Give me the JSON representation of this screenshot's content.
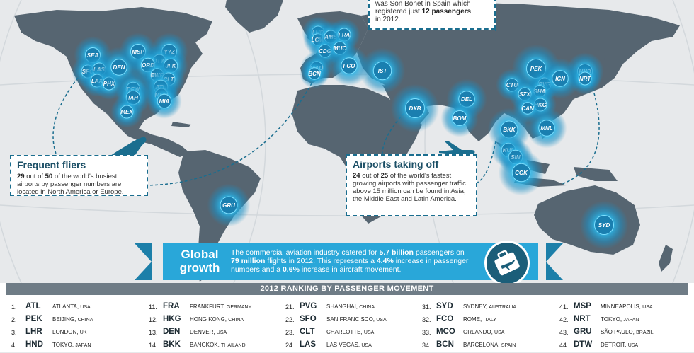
{
  "callouts": {
    "top": {
      "line1": "was Son Bonet in Spain which",
      "line2_pre": "registered just ",
      "line2_bold": "12 passengers",
      "line3": "in 2012."
    },
    "frequent_fliers": {
      "title": "Frequent fliers",
      "n1": "29",
      "t1": " out of ",
      "n2": "50",
      "t2": " of the world's busiest airports by passenger numbers are located in North America or Europe."
    },
    "taking_off": {
      "title": "Airports taking off",
      "n1": "24",
      "t1": " out of ",
      "n2": "25",
      "t2": " of the world's fastest growing airports with passenger traffic above 15 million can be found in Asia, the Middle East and Latin America."
    }
  },
  "banner": {
    "title_line1": "Global",
    "title_line2": "growth",
    "t1": "The commercial aviation industry catered for ",
    "b1": "5.7 billion",
    "t2": " passengers on ",
    "b2": "79 million",
    "t3": " flights in 2012. This represents a ",
    "b3": "4.4%",
    "t4": " increase in passenger numbers and a ",
    "b4": "0.6%",
    "t5": " increase in aircraft movement."
  },
  "airports_map": [
    {
      "code": "SEA"
    },
    {
      "code": "SFO"
    },
    {
      "code": "LAS"
    },
    {
      "code": "LAX"
    },
    {
      "code": "PHX"
    },
    {
      "code": "DEN"
    },
    {
      "code": "MSP"
    },
    {
      "code": "YYZ"
    },
    {
      "code": "DTW"
    },
    {
      "code": "ORD"
    },
    {
      "code": "JFK"
    },
    {
      "code": "EWR"
    },
    {
      "code": "CLT"
    },
    {
      "code": "ATL"
    },
    {
      "code": "DFW"
    },
    {
      "code": "IAH"
    },
    {
      "code": "MCO"
    },
    {
      "code": "MIA"
    },
    {
      "code": "MEX"
    },
    {
      "code": "GRU"
    },
    {
      "code": "LHR"
    },
    {
      "code": "LGW"
    },
    {
      "code": "AMS"
    },
    {
      "code": "FRA"
    },
    {
      "code": "CDG"
    },
    {
      "code": "MUC"
    },
    {
      "code": "MAD"
    },
    {
      "code": "BCN"
    },
    {
      "code": "FCO"
    },
    {
      "code": "IST"
    },
    {
      "code": "DXB"
    },
    {
      "code": "DEL"
    },
    {
      "code": "BOM"
    },
    {
      "code": "PEK"
    },
    {
      "code": "CTU"
    },
    {
      "code": "PVG"
    },
    {
      "code": "SHA"
    },
    {
      "code": "SZX"
    },
    {
      "code": "HKG"
    },
    {
      "code": "CAN"
    },
    {
      "code": "ICN"
    },
    {
      "code": "HND"
    },
    {
      "code": "NRT"
    },
    {
      "code": "BKK"
    },
    {
      "code": "MNL"
    },
    {
      "code": "KUL"
    },
    {
      "code": "SIN"
    },
    {
      "code": "CGK"
    },
    {
      "code": "SYD"
    }
  ],
  "ranking": {
    "title": "2012 RANKING BY PASSENGER MOVEMENT",
    "columns": [
      [
        {
          "rank": "1.",
          "code": "ATL",
          "city": "ATLANTA,",
          "country": "USA"
        },
        {
          "rank": "2.",
          "code": "PEK",
          "city": "BEIJING,",
          "country": "CHINA"
        },
        {
          "rank": "3.",
          "code": "LHR",
          "city": "LONDON,",
          "country": "UK"
        },
        {
          "rank": "4.",
          "code": "HND",
          "city": "TOKYO,",
          "country": "JAPAN"
        }
      ],
      [
        {
          "rank": "11.",
          "code": "FRA",
          "city": "FRANKFURT,",
          "country": "GERMANY"
        },
        {
          "rank": "12.",
          "code": "HKG",
          "city": "HONG KONG,",
          "country": "CHINA"
        },
        {
          "rank": "13.",
          "code": "DEN",
          "city": "DENVER,",
          "country": "USA"
        },
        {
          "rank": "14.",
          "code": "BKK",
          "city": "BANGKOK,",
          "country": "THAILAND"
        }
      ],
      [
        {
          "rank": "21.",
          "code": "PVG",
          "city": "SHANGHAI,",
          "country": "CHINA"
        },
        {
          "rank": "22.",
          "code": "SFO",
          "city": "SAN FRANCISCO,",
          "country": "USA"
        },
        {
          "rank": "23.",
          "code": "CLT",
          "city": "CHARLOTTE,",
          "country": "USA"
        },
        {
          "rank": "24.",
          "code": "LAS",
          "city": "LAS VEGAS,",
          "country": "USA"
        }
      ],
      [
        {
          "rank": "31.",
          "code": "SYD",
          "city": "SYDNEY,",
          "country": "AUSTRALIA"
        },
        {
          "rank": "32.",
          "code": "FCO",
          "city": "ROME,",
          "country": "ITALY"
        },
        {
          "rank": "33.",
          "code": "MCO",
          "city": "ORLANDO,",
          "country": "USA"
        },
        {
          "rank": "34.",
          "code": "BCN",
          "city": "BARCELONA,",
          "country": "SPAIN"
        }
      ],
      [
        {
          "rank": "41.",
          "code": "MSP",
          "city": "MINNEAPOLIS,",
          "country": "USA"
        },
        {
          "rank": "42.",
          "code": "NRT",
          "city": "TOKYO,",
          "country": "JAPAN"
        },
        {
          "rank": "43.",
          "code": "GRU",
          "city": "SÃO PAULO,",
          "country": "BRAZIL"
        },
        {
          "rank": "44.",
          "code": "DTW",
          "city": "DETROIT,",
          "country": "USA"
        }
      ]
    ]
  },
  "colors": {
    "ocean": "#e7e9eb",
    "land": "#566571",
    "accent": "#29a7d9",
    "dark_accent": "#1b6e8f",
    "glow": "#3ec4ee"
  }
}
